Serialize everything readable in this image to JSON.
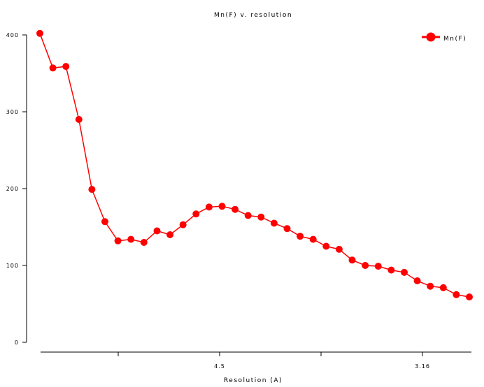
{
  "chart_data": {
    "type": "line",
    "title": "Mn(F) v. resolution",
    "xlabel": "Resolution (A)",
    "ylabel": "",
    "x_tick_labels": [
      "4.5",
      "3.16"
    ],
    "y_ticks": [
      0,
      100,
      200,
      300,
      400
    ],
    "ylim": [
      0,
      400
    ],
    "legend_position": "top-right",
    "series": [
      {
        "name": "Mn(F)",
        "color": "#ff0000",
        "values": [
          402,
          357,
          359,
          290,
          199,
          157,
          132,
          134,
          130,
          145,
          140,
          153,
          167,
          176,
          177,
          173,
          165,
          163,
          155,
          148,
          138,
          134,
          125,
          121,
          107,
          100,
          99,
          94,
          91,
          80,
          73,
          71,
          62,
          59
        ]
      }
    ]
  }
}
